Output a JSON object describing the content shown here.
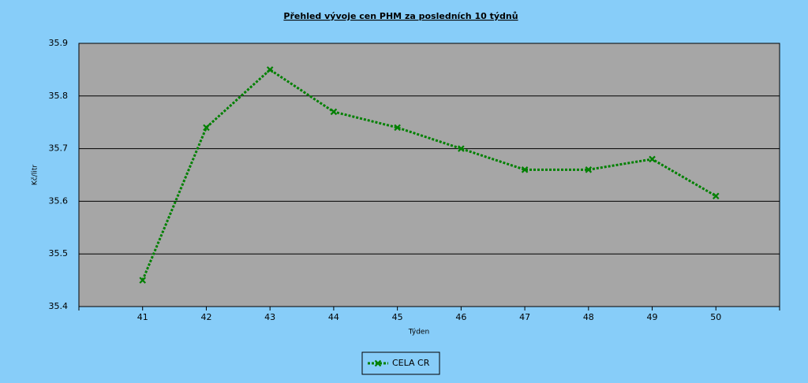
{
  "chart_data": {
    "type": "line",
    "title": "Přehled vývoje cen PHM za posledních 10 týdnů",
    "x_label": "Týden",
    "y_label": "Kč/litr",
    "x": [
      41,
      42,
      43,
      44,
      45,
      46,
      47,
      48,
      49,
      50
    ],
    "xlim": [
      40,
      51
    ],
    "xticks": [
      41,
      42,
      43,
      44,
      45,
      46,
      47,
      48,
      49,
      50
    ],
    "ylim": [
      35.4,
      35.9
    ],
    "yticks": [
      35.4,
      35.5,
      35.6,
      35.7,
      35.8,
      35.9
    ],
    "grid": true,
    "legend": "bottom",
    "series": [
      {
        "name": "CELA CR",
        "color": "#008000",
        "values": [
          35.45,
          35.74,
          35.85,
          35.77,
          35.74,
          35.7,
          35.66,
          35.66,
          35.68,
          35.61
        ]
      }
    ]
  }
}
